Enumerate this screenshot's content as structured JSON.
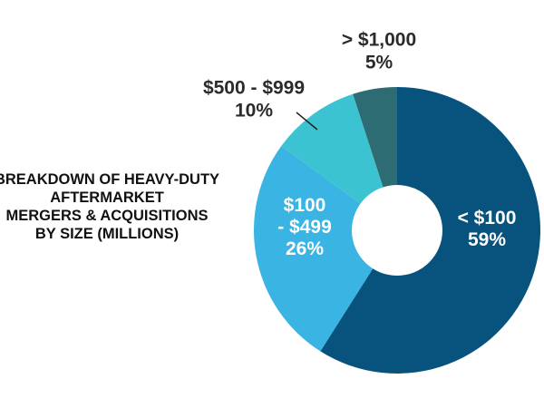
{
  "chart_data": {
    "type": "pie",
    "donut": true,
    "title_lines": [
      "BREAKDOWN OF HEAVY-DUTY",
      "AFTERMARKET",
      "MERGERS & ACQUISITIONS",
      "BY SIZE (MILLIONS)"
    ],
    "slices": [
      {
        "label_lines": [
          "< $100",
          "59%"
        ],
        "value": 59,
        "color": "#08537d"
      },
      {
        "label_lines": [
          "$100",
          "- $499",
          "26%"
        ],
        "value": 26,
        "color": "#3ab4e2"
      },
      {
        "label_lines": [
          "$500 - $999",
          "10%"
        ],
        "value": 10,
        "color": "#3cc3d1"
      },
      {
        "label_lines": [
          "> $1,000",
          "5%"
        ],
        "value": 5,
        "color": "#2e6c74"
      }
    ]
  }
}
